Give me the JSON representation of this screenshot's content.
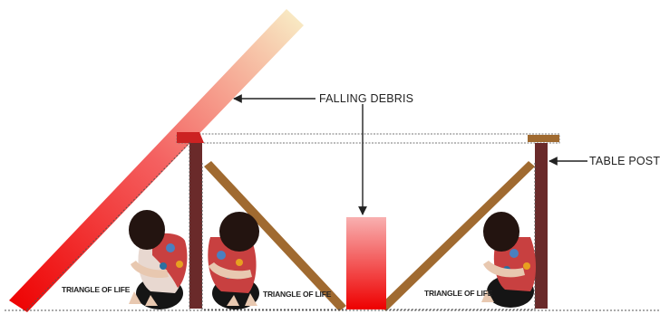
{
  "labels": {
    "falling_debris": "FALLING DEBRIS",
    "table_post": "TABLE POST",
    "triangle_left": "TRIANGLE OF LIFE",
    "triangle_middle": "TRIANGLE OF LIFE",
    "triangle_right": "TRIANGLE OF LIFE"
  },
  "colors": {
    "debris_top": "#f8f0c8",
    "debris_bottom": "#ee0000",
    "post": "#6a2a2a",
    "beam": "#a06a30",
    "dotted": "#555555"
  }
}
